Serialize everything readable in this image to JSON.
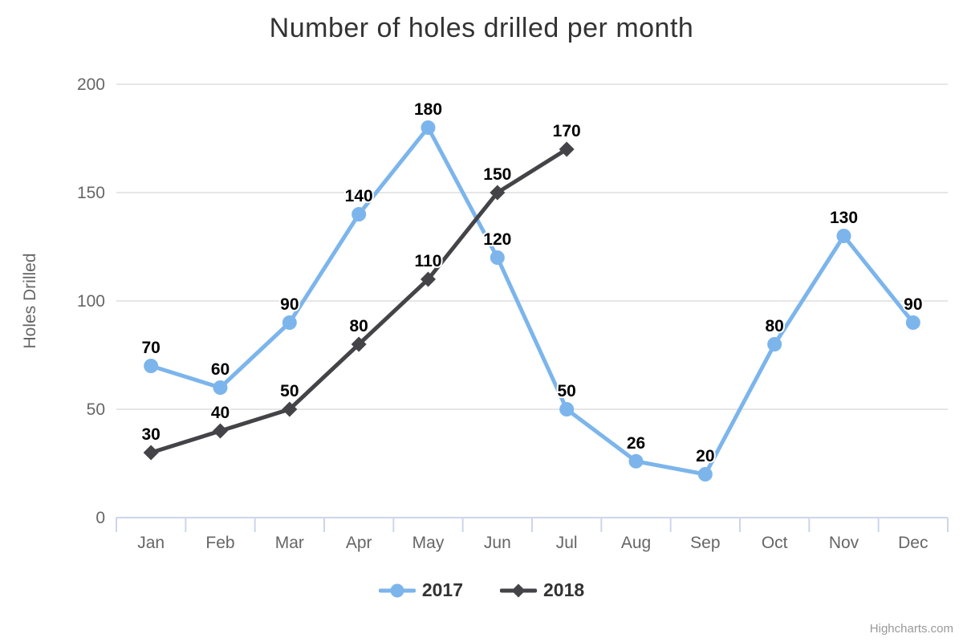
{
  "chart_data": {
    "type": "line",
    "title": "Number of holes drilled per month",
    "xlabel": "",
    "ylabel": "Holes Drilled",
    "categories": [
      "Jan",
      "Feb",
      "Mar",
      "Apr",
      "May",
      "Jun",
      "Jul",
      "Aug",
      "Sep",
      "Oct",
      "Nov",
      "Dec"
    ],
    "series": [
      {
        "name": "2017",
        "color": "#7cb5ec",
        "marker": "circle",
        "values": [
          70,
          60,
          90,
          140,
          180,
          120,
          50,
          26,
          20,
          80,
          130,
          90
        ]
      },
      {
        "name": "2018",
        "color": "#434348",
        "marker": "diamond",
        "values": [
          30,
          40,
          50,
          80,
          110,
          150,
          170
        ]
      }
    ],
    "ylim": [
      0,
      200
    ],
    "yticks": [
      0,
      50,
      100,
      150,
      200
    ],
    "grid": true,
    "legend_position": "bottom",
    "data_labels": true
  },
  "colors": {
    "grid": "#e6e6e6",
    "axis_line": "#ccd6eb",
    "axis_label": "#666666",
    "title": "#333333",
    "data_label": "#000000",
    "legend_label": "#333333",
    "credits": "#999999"
  },
  "credits": {
    "text": "Highcharts.com"
  }
}
